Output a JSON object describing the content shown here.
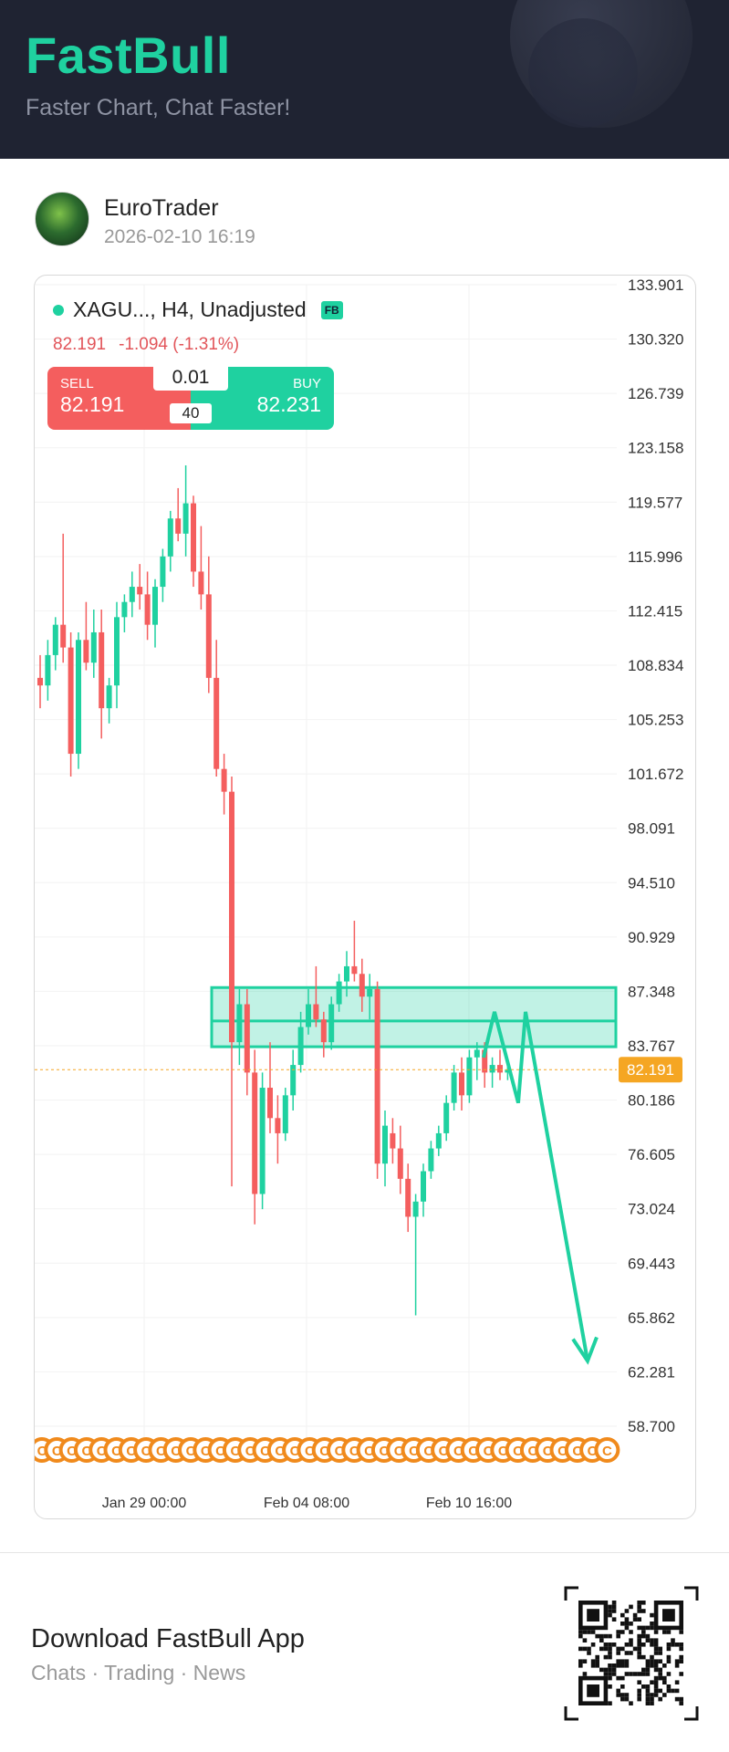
{
  "header": {
    "brand": "FastBull",
    "tagline": "Faster Chart, Chat Faster!"
  },
  "post": {
    "author": "EuroTrader",
    "timestamp": "2026-02-10 16:19"
  },
  "chart": {
    "symbol": "XAGU...",
    "timeframe": ", H4, Unadjusted",
    "badge": "FB",
    "last_price": "82.191",
    "change": "-1.094 (-1.31%)",
    "trade_panel": {
      "sell_label": "SELL",
      "sell_price": "82.191",
      "buy_label": "BUY",
      "buy_price": "82.231",
      "lot_size": "0.01",
      "spread": "40"
    },
    "current_price_tag": "82.191"
  },
  "chart_data": {
    "type": "candlestick",
    "instrument": "XAGU...",
    "timeframe": "H4",
    "y_ticks": [
      "133.901",
      "130.320",
      "126.739",
      "123.158",
      "119.577",
      "115.996",
      "112.415",
      "108.834",
      "105.253",
      "101.672",
      "98.091",
      "94.510",
      "90.929",
      "87.348",
      "83.767",
      "80.186",
      "76.605",
      "73.024",
      "69.443",
      "65.862",
      "62.281",
      "58.700"
    ],
    "ylim": [
      58.7,
      133.901
    ],
    "x_ticks": [
      "Jan 29 00:00",
      "Feb 04 08:00",
      "Feb 10 16:00"
    ],
    "current_price": 82.191,
    "zone": {
      "top": 87.6,
      "bottom": 83.7,
      "midline": 85.4
    },
    "projection": [
      [
        83.0,
        86.0
      ],
      [
        80.0,
        83.8
      ],
      [
        63.0,
        63.0
      ]
    ],
    "candles": [
      [
        108.0,
        109.5,
        106.0,
        107.5
      ],
      [
        107.5,
        110.5,
        106.5,
        109.5
      ],
      [
        109.5,
        112.0,
        108.5,
        111.5
      ],
      [
        111.5,
        117.5,
        109.0,
        110.0
      ],
      [
        110.0,
        111.0,
        101.5,
        103.0
      ],
      [
        103.0,
        111.0,
        102.0,
        110.5
      ],
      [
        110.5,
        113.0,
        108.5,
        109.0
      ],
      [
        109.0,
        112.5,
        108.0,
        111.0
      ],
      [
        111.0,
        112.5,
        104.0,
        106.0
      ],
      [
        106.0,
        108.0,
        105.0,
        107.5
      ],
      [
        107.5,
        113.0,
        106.0,
        112.0
      ],
      [
        112.0,
        113.5,
        111.0,
        113.0
      ],
      [
        113.0,
        115.0,
        112.0,
        114.0
      ],
      [
        114.0,
        115.5,
        112.5,
        113.5
      ],
      [
        113.5,
        115.0,
        110.5,
        111.5
      ],
      [
        111.5,
        114.5,
        110.0,
        114.0
      ],
      [
        114.0,
        116.5,
        113.0,
        116.0
      ],
      [
        116.0,
        119.0,
        115.0,
        118.5
      ],
      [
        118.5,
        120.5,
        117.0,
        117.5
      ],
      [
        117.5,
        122.0,
        116.0,
        119.5
      ],
      [
        119.5,
        120.0,
        114.0,
        115.0
      ],
      [
        115.0,
        118.0,
        112.5,
        113.5
      ],
      [
        113.5,
        116.0,
        107.0,
        108.0
      ],
      [
        108.0,
        110.5,
        101.5,
        102.0
      ],
      [
        102.0,
        103.0,
        99.0,
        100.5
      ],
      [
        100.5,
        101.5,
        74.5,
        84.0
      ],
      [
        84.0,
        87.5,
        82.5,
        86.5
      ],
      [
        86.5,
        87.5,
        80.5,
        82.0
      ],
      [
        82.0,
        83.5,
        72.0,
        74.0
      ],
      [
        74.0,
        82.0,
        73.0,
        81.0
      ],
      [
        81.0,
        84.0,
        78.0,
        79.0
      ],
      [
        79.0,
        80.5,
        76.0,
        78.0
      ],
      [
        78.0,
        81.0,
        77.5,
        80.5
      ],
      [
        80.5,
        83.5,
        79.5,
        82.5
      ],
      [
        82.5,
        86.0,
        82.0,
        85.0
      ],
      [
        85.0,
        87.5,
        84.5,
        86.5
      ],
      [
        86.5,
        89.0,
        85.0,
        85.5
      ],
      [
        85.5,
        86.0,
        83.0,
        84.0
      ],
      [
        84.0,
        87.0,
        83.5,
        86.5
      ],
      [
        86.5,
        88.5,
        86.0,
        88.0
      ],
      [
        88.0,
        90.0,
        87.0,
        89.0
      ],
      [
        89.0,
        92.0,
        88.0,
        88.5
      ],
      [
        88.5,
        89.5,
        86.0,
        87.0
      ],
      [
        87.0,
        88.5,
        85.5,
        87.5
      ],
      [
        87.5,
        88.0,
        75.0,
        76.0
      ],
      [
        76.0,
        79.5,
        74.5,
        78.5
      ],
      [
        78.0,
        79.0,
        76.0,
        77.0
      ],
      [
        77.0,
        78.5,
        74.0,
        75.0
      ],
      [
        75.0,
        76.0,
        71.5,
        72.5
      ],
      [
        72.5,
        74.0,
        66.0,
        73.5
      ],
      [
        73.5,
        76.0,
        72.5,
        75.5
      ],
      [
        75.5,
        77.5,
        75.0,
        77.0
      ],
      [
        77.0,
        78.5,
        76.5,
        78.0
      ],
      [
        78.0,
        80.5,
        77.5,
        80.0
      ],
      [
        80.0,
        82.5,
        79.5,
        82.0
      ],
      [
        82.0,
        83.0,
        79.5,
        80.5
      ],
      [
        80.5,
        83.5,
        80.0,
        83.0
      ],
      [
        83.0,
        84.0,
        81.5,
        83.5
      ],
      [
        83.5,
        84.0,
        81.0,
        82.0
      ],
      [
        82.0,
        83.0,
        81.0,
        82.5
      ],
      [
        82.5,
        83.5,
        81.5,
        82.0
      ],
      [
        82.0,
        82.8,
        81.5,
        82.2
      ]
    ],
    "event_markers": 39
  },
  "footer": {
    "title": "Download FastBull App",
    "subtitle": "Chats · Trading · News"
  },
  "colors": {
    "brand": "#1fd1a0",
    "bull": "#1fd1a0",
    "bear": "#f45e5e",
    "price_tag": "#f5a623",
    "event": "#f08a1c"
  }
}
